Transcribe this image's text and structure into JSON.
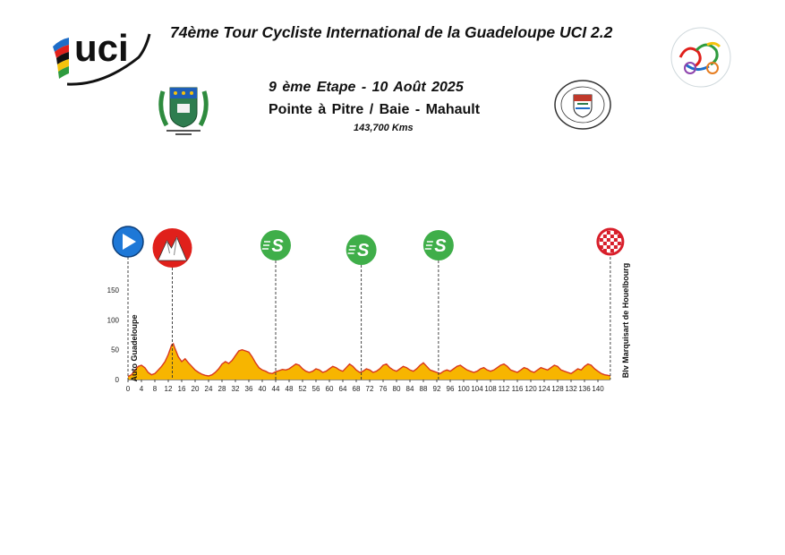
{
  "header": {
    "race_title": "74ème Tour Cycliste International de la Guadeloupe UCI 2.2",
    "stage_line": "9 ème Etape   -   10  Août  2025",
    "route_line": "Pointe à Pitre   /  Baie - Mahault",
    "distance": "143,700 Kms",
    "uci_logo_text": "uci",
    "comite_logo_text": "Comité Régional de Cyclisme · Iles de Guadeloupe",
    "baie_mahault_seal_text": "VILLE DE BAIE-MAHAULT · GUADELOUPE"
  },
  "colors": {
    "profile_fill": "#F7B500",
    "profile_stroke": "#D9381E",
    "start_marker": "#1E78D7",
    "climb_marker": "#E0201B",
    "sprint_marker": "#3FAE49",
    "finish_marker": "#D81E2A"
  },
  "markers": [
    {
      "type": "start",
      "km": 0,
      "icon": "play-icon"
    },
    {
      "type": "climb",
      "km": 13.2,
      "icon": "mountain-icon"
    },
    {
      "type": "sprint",
      "km": 44,
      "icon": "sprint-s-icon",
      "label": "S"
    },
    {
      "type": "sprint",
      "km": 69.5,
      "icon": "sprint-s-icon",
      "label": "S"
    },
    {
      "type": "sprint",
      "km": 92.5,
      "icon": "sprint-s-icon",
      "label": "S"
    },
    {
      "type": "finish",
      "km": 143.7,
      "icon": "checkered-flag-icon"
    }
  ],
  "chart_data": {
    "type": "area",
    "title": "",
    "xlabel": "",
    "ylabel": "",
    "xlim": [
      0,
      143.7
    ],
    "ylim": [
      0,
      175
    ],
    "x_ticks": [
      0,
      4,
      8,
      12,
      16,
      20,
      24,
      28,
      32,
      36,
      40,
      44,
      48,
      52,
      56,
      60,
      64,
      68,
      72,
      76,
      80,
      84,
      88,
      92,
      96,
      100,
      104,
      108,
      112,
      116,
      120,
      124,
      128,
      132,
      136,
      140
    ],
    "y_ticks": [
      0,
      50,
      100,
      150
    ],
    "grid": false,
    "start_label": "Auto Guadeloupe",
    "finish_label": "Blv Marquisart de Houelbourg",
    "series": [
      {
        "x": [
          0,
          1,
          2,
          3,
          4,
          5,
          6,
          7,
          8,
          9,
          10,
          11,
          12,
          13,
          13.5,
          14,
          15,
          16,
          17,
          18,
          19,
          20,
          21,
          22,
          23,
          24,
          25,
          26,
          27,
          28,
          29,
          30,
          31,
          32,
          33,
          34,
          35,
          36,
          37,
          38,
          39,
          40,
          41,
          42,
          43,
          44,
          45,
          46,
          47,
          48,
          49,
          50,
          51,
          52,
          53,
          54,
          55,
          56,
          57,
          58,
          59,
          60,
          61,
          62,
          63,
          64,
          65,
          66,
          67,
          68,
          69,
          70,
          71,
          72,
          73,
          74,
          75,
          76,
          77,
          78,
          79,
          80,
          81,
          82,
          83,
          84,
          85,
          86,
          87,
          88,
          89,
          90,
          91,
          92,
          93,
          94,
          95,
          96,
          97,
          98,
          99,
          100,
          101,
          102,
          103,
          104,
          105,
          106,
          107,
          108,
          109,
          110,
          111,
          112,
          113,
          114,
          115,
          116,
          117,
          118,
          119,
          120,
          121,
          122,
          123,
          124,
          125,
          126,
          127,
          128,
          129,
          130,
          131,
          132,
          133,
          134,
          135,
          136,
          137,
          138,
          139,
          140,
          141,
          142,
          143,
          143.7
        ],
        "y": [
          5,
          8,
          15,
          22,
          24,
          20,
          12,
          8,
          10,
          16,
          22,
          30,
          42,
          58,
          60,
          52,
          38,
          30,
          35,
          28,
          22,
          16,
          12,
          9,
          7,
          6,
          8,
          12,
          18,
          26,
          30,
          27,
          32,
          40,
          48,
          50,
          48,
          46,
          38,
          28,
          20,
          16,
          14,
          11,
          10,
          13,
          15,
          17,
          16,
          18,
          22,
          26,
          24,
          18,
          14,
          12,
          14,
          18,
          16,
          12,
          14,
          18,
          22,
          20,
          16,
          14,
          20,
          26,
          22,
          16,
          12,
          14,
          18,
          16,
          12,
          14,
          18,
          24,
          26,
          20,
          16,
          14,
          18,
          22,
          20,
          16,
          14,
          18,
          24,
          28,
          22,
          16,
          14,
          12,
          10,
          14,
          16,
          14,
          18,
          22,
          24,
          20,
          16,
          14,
          12,
          14,
          18,
          20,
          16,
          14,
          16,
          20,
          24,
          26,
          22,
          16,
          14,
          12,
          16,
          20,
          18,
          14,
          12,
          16,
          20,
          18,
          16,
          20,
          24,
          22,
          16,
          14,
          12,
          10,
          14,
          18,
          16,
          22,
          26,
          24,
          18,
          14,
          10,
          8,
          7,
          6
        ]
      }
    ]
  }
}
